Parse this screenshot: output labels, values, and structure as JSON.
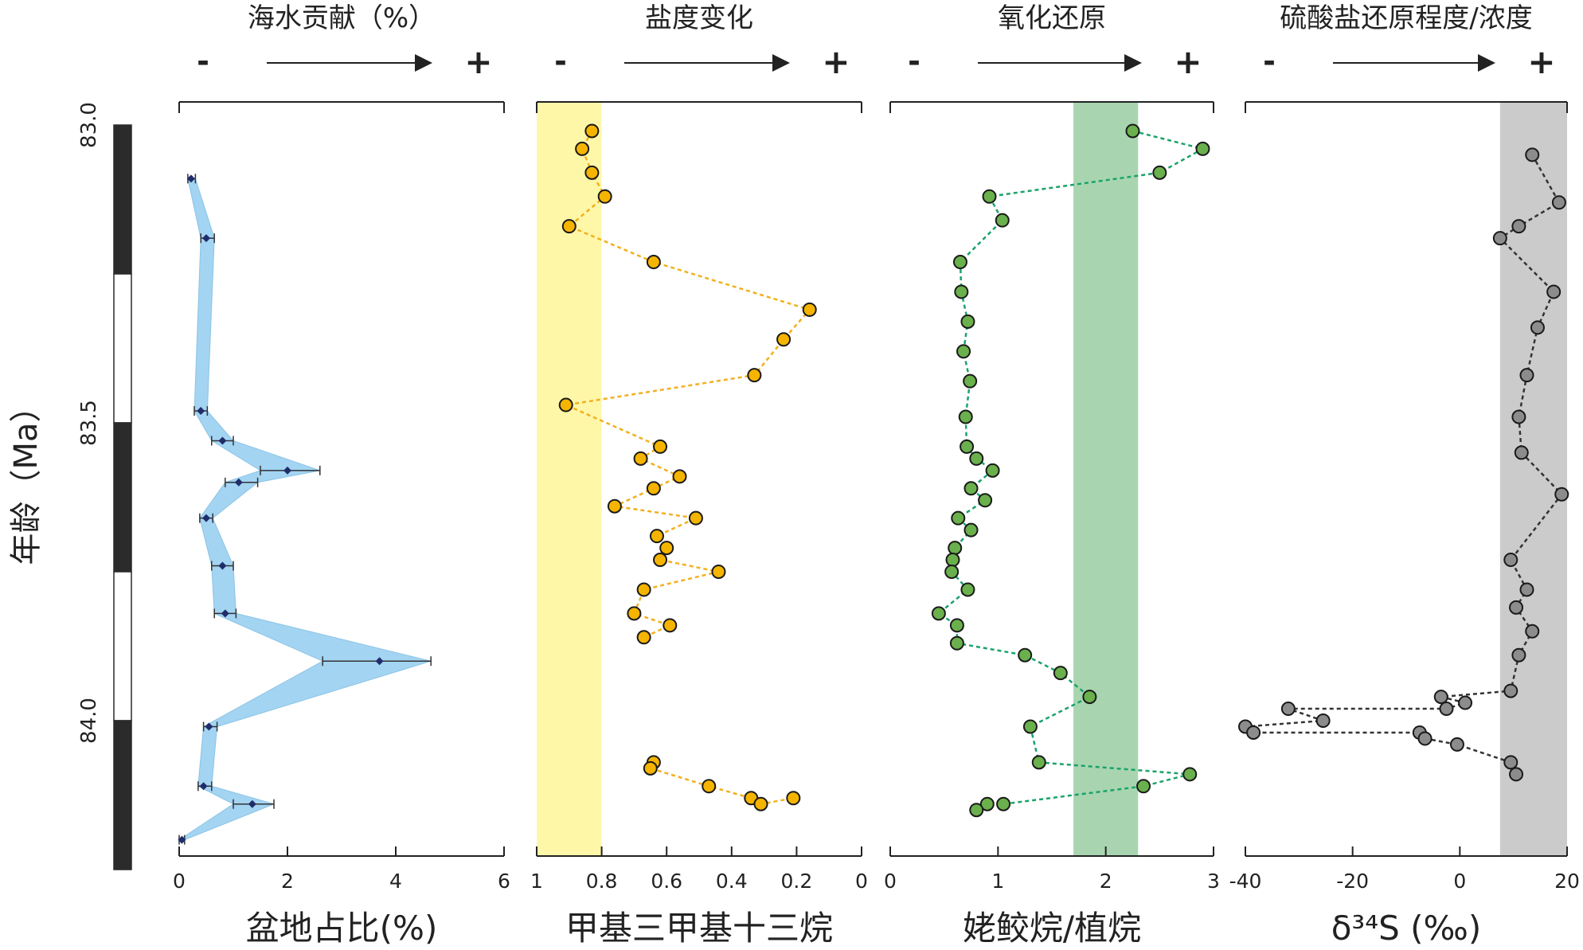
{
  "age_axis": {
    "label": "年龄（Ma）",
    "ticks": [
      "83.0",
      "83.5",
      "84.0"
    ],
    "range": [
      83.0,
      84.25
    ],
    "polarity_zones": [
      {
        "from": 83.0,
        "to": 83.25,
        "color": "#2b2b2b"
      },
      {
        "from": 83.25,
        "to": 83.5,
        "color": "#ffffff"
      },
      {
        "from": 83.5,
        "to": 83.75,
        "color": "#2b2b2b"
      },
      {
        "from": 83.75,
        "to": 84.0,
        "color": "#ffffff"
      },
      {
        "from": 84.0,
        "to": 84.25,
        "color": "#2b2b2b"
      }
    ]
  },
  "chart_data": [
    {
      "type": "area",
      "title": "海水贡献（%）",
      "arrow_left": "-",
      "arrow_right": "+",
      "xlabel": "盆地占比(%)",
      "xlim": [
        0,
        6
      ],
      "xticks": [
        "0",
        "2",
        "4",
        "6"
      ],
      "band_color": "#a3d4f2",
      "point_color": "#1f2d6b",
      "points": [
        {
          "age": 83.09,
          "x": 0.22,
          "lo": 0.16,
          "hi": 0.3
        },
        {
          "age": 83.19,
          "x": 0.5,
          "lo": 0.4,
          "hi": 0.65
        },
        {
          "age": 83.48,
          "x": 0.4,
          "lo": 0.28,
          "hi": 0.52
        },
        {
          "age": 83.53,
          "x": 0.8,
          "lo": 0.6,
          "hi": 1.0
        },
        {
          "age": 83.58,
          "x": 2.0,
          "lo": 1.5,
          "hi": 2.6
        },
        {
          "age": 83.6,
          "x": 1.1,
          "lo": 0.85,
          "hi": 1.45
        },
        {
          "age": 83.66,
          "x": 0.5,
          "lo": 0.38,
          "hi": 0.62
        },
        {
          "age": 83.74,
          "x": 0.8,
          "lo": 0.6,
          "hi": 1.0
        },
        {
          "age": 83.82,
          "x": 0.85,
          "lo": 0.65,
          "hi": 1.05
        },
        {
          "age": 83.9,
          "x": 3.7,
          "lo": 2.65,
          "hi": 4.65
        },
        {
          "age": 84.01,
          "x": 0.55,
          "lo": 0.45,
          "hi": 0.7
        },
        {
          "age": 84.11,
          "x": 0.45,
          "lo": 0.35,
          "hi": 0.6
        },
        {
          "age": 84.14,
          "x": 1.35,
          "lo": 1.0,
          "hi": 1.75
        },
        {
          "age": 84.2,
          "x": 0.05,
          "lo": 0.0,
          "hi": 0.1
        }
      ]
    },
    {
      "type": "scatter",
      "title": "盐度变化",
      "arrow_left": "-",
      "arrow_right": "+",
      "xlabel": "甲基三甲基十三烷",
      "xlim": [
        1,
        0
      ],
      "xticks": [
        "1",
        "0.8",
        "0.6",
        "0.4",
        "0.2",
        "0"
      ],
      "highlight": {
        "from": 1.0,
        "to": 0.8,
        "color": "#fff7a8"
      },
      "point_color": "#f5b400",
      "line_color": "#f2b01e",
      "segments": [
        [
          {
            "age": 83.01,
            "x": 0.83
          },
          {
            "age": 83.04,
            "x": 0.86
          },
          {
            "age": 83.08,
            "x": 0.83
          },
          {
            "age": 83.12,
            "x": 0.79
          },
          {
            "age": 83.17,
            "x": 0.9
          },
          {
            "age": 83.23,
            "x": 0.64
          },
          {
            "age": 83.31,
            "x": 0.16
          },
          {
            "age": 83.36,
            "x": 0.24
          },
          {
            "age": 83.42,
            "x": 0.33
          },
          {
            "age": 83.47,
            "x": 0.91
          },
          {
            "age": 83.54,
            "x": 0.62
          },
          {
            "age": 83.56,
            "x": 0.68
          },
          {
            "age": 83.59,
            "x": 0.56
          },
          {
            "age": 83.61,
            "x": 0.64
          },
          {
            "age": 83.64,
            "x": 0.76
          },
          {
            "age": 83.66,
            "x": 0.51
          },
          {
            "age": 83.69,
            "x": 0.63
          },
          {
            "age": 83.71,
            "x": 0.6
          },
          {
            "age": 83.73,
            "x": 0.62
          },
          {
            "age": 83.75,
            "x": 0.44
          },
          {
            "age": 83.78,
            "x": 0.67
          },
          {
            "age": 83.82,
            "x": 0.7
          },
          {
            "age": 83.84,
            "x": 0.59
          },
          {
            "age": 83.86,
            "x": 0.67
          }
        ],
        [
          {
            "age": 84.07,
            "x": 0.64
          },
          {
            "age": 84.08,
            "x": 0.65
          },
          {
            "age": 84.11,
            "x": 0.47
          },
          {
            "age": 84.13,
            "x": 0.34
          },
          {
            "age": 84.14,
            "x": 0.31
          },
          {
            "age": 84.13,
            "x": 0.21
          }
        ]
      ]
    },
    {
      "type": "scatter",
      "title": "氧化还原",
      "arrow_left": "-",
      "arrow_right": "+",
      "xlabel": "姥鲛烷/植烷",
      "xlim": [
        0,
        3
      ],
      "xticks": [
        "0",
        "1",
        "2",
        "3"
      ],
      "highlight": {
        "from": 1.7,
        "to": 2.3,
        "color": "#a8d5b0"
      },
      "point_color": "#6ab04c",
      "line_color": "#1aa36b",
      "segments": [
        [
          {
            "age": 83.01,
            "x": 2.25
          },
          {
            "age": 83.04,
            "x": 2.9
          },
          {
            "age": 83.08,
            "x": 2.5
          },
          {
            "age": 83.12,
            "x": 0.92
          },
          {
            "age": 83.16,
            "x": 1.04
          },
          {
            "age": 83.23,
            "x": 0.65
          },
          {
            "age": 83.28,
            "x": 0.66
          },
          {
            "age": 83.33,
            "x": 0.72
          },
          {
            "age": 83.38,
            "x": 0.68
          },
          {
            "age": 83.43,
            "x": 0.74
          },
          {
            "age": 83.49,
            "x": 0.7
          },
          {
            "age": 83.54,
            "x": 0.71
          },
          {
            "age": 83.56,
            "x": 0.8
          },
          {
            "age": 83.58,
            "x": 0.95
          },
          {
            "age": 83.61,
            "x": 0.75
          },
          {
            "age": 83.63,
            "x": 0.88
          },
          {
            "age": 83.66,
            "x": 0.63
          },
          {
            "age": 83.68,
            "x": 0.75
          },
          {
            "age": 83.71,
            "x": 0.6
          },
          {
            "age": 83.73,
            "x": 0.58
          },
          {
            "age": 83.75,
            "x": 0.57
          },
          {
            "age": 83.78,
            "x": 0.72
          },
          {
            "age": 83.82,
            "x": 0.45
          },
          {
            "age": 83.84,
            "x": 0.62
          },
          {
            "age": 83.87,
            "x": 0.62
          },
          {
            "age": 83.89,
            "x": 1.25
          },
          {
            "age": 83.92,
            "x": 1.58
          },
          {
            "age": 83.96,
            "x": 1.85
          },
          {
            "age": 84.01,
            "x": 1.3
          },
          {
            "age": 84.07,
            "x": 1.38
          },
          {
            "age": 84.09,
            "x": 2.78
          },
          {
            "age": 84.11,
            "x": 2.35
          },
          {
            "age": 84.14,
            "x": 1.05
          },
          {
            "age": 84.14,
            "x": 0.9
          },
          {
            "age": 84.15,
            "x": 0.8
          }
        ]
      ]
    },
    {
      "type": "scatter",
      "title": "硫酸盐还原程度/浓度",
      "arrow_left": "-",
      "arrow_right": "+",
      "xlabel": "δ³⁴S (‰)",
      "xlim": [
        -40,
        20
      ],
      "xticks": [
        "-40",
        "-20",
        "0",
        "20"
      ],
      "highlight": {
        "from": 7.5,
        "to": 20,
        "color": "#cbcbcb"
      },
      "point_color": "#8c8c8c",
      "line_color": "#333333",
      "segments": [
        [
          {
            "age": 83.05,
            "x": 13.5
          },
          {
            "age": 83.13,
            "x": 18.5
          },
          {
            "age": 83.17,
            "x": 11.0
          },
          {
            "age": 83.19,
            "x": 7.5
          },
          {
            "age": 83.28,
            "x": 17.5
          },
          {
            "age": 83.34,
            "x": 14.5
          },
          {
            "age": 83.42,
            "x": 12.5
          },
          {
            "age": 83.49,
            "x": 11.0
          },
          {
            "age": 83.55,
            "x": 11.5
          },
          {
            "age": 83.62,
            "x": 19.0
          },
          {
            "age": 83.73,
            "x": 9.5
          },
          {
            "age": 83.78,
            "x": 12.5
          },
          {
            "age": 83.81,
            "x": 10.5
          },
          {
            "age": 83.85,
            "x": 13.5
          },
          {
            "age": 83.89,
            "x": 11.0
          },
          {
            "age": 83.95,
            "x": 9.5
          },
          {
            "age": 83.96,
            "x": -3.5
          },
          {
            "age": 83.97,
            "x": 1.0
          },
          {
            "age": 83.98,
            "x": -2.5
          },
          {
            "age": 83.98,
            "x": -32.0
          },
          {
            "age": 84.0,
            "x": -25.5
          },
          {
            "age": 84.01,
            "x": -40.0
          },
          {
            "age": 84.02,
            "x": -38.5
          },
          {
            "age": 84.02,
            "x": -7.5
          },
          {
            "age": 84.03,
            "x": -6.5
          },
          {
            "age": 84.04,
            "x": -0.5
          },
          {
            "age": 84.07,
            "x": 9.5
          },
          {
            "age": 84.09,
            "x": 10.5
          }
        ]
      ]
    }
  ]
}
